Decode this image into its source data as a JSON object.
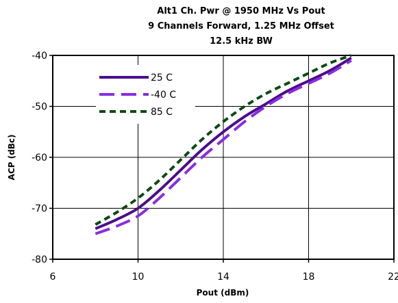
{
  "chart_data": {
    "type": "line",
    "title": [
      "Alt1 Ch. Pwr @ 1950 MHz Vs Pout",
      "9 Channels Forward, 1.25 MHz Offset",
      "12.5 kHz BW"
    ],
    "xlabel": "Pout (dBm)",
    "ylabel": "ACP (dBc)",
    "xlim": [
      6,
      22
    ],
    "ylim": [
      -80,
      -40
    ],
    "xticks": [
      6,
      10,
      14,
      18,
      22
    ],
    "yticks": [
      -80,
      -70,
      -60,
      -50,
      -40
    ],
    "grid": true,
    "legend_position": "top-left",
    "series": [
      {
        "name": "25 C",
        "color": "#4b0d8c",
        "dash": "solid",
        "x": [
          8,
          9,
          10,
          11,
          12,
          13,
          14,
          15,
          16,
          17,
          18,
          19,
          20
        ],
        "y": [
          -74,
          -72.2,
          -70,
          -66.5,
          -62.5,
          -58.5,
          -55,
          -52,
          -49.5,
          -47,
          -45,
          -43,
          -40.5
        ]
      },
      {
        "name": "-40 C",
        "color": "#8a2be2",
        "dash": "long",
        "x": [
          8,
          9,
          10,
          11,
          12,
          13,
          14,
          15,
          16,
          17,
          18,
          19,
          20
        ],
        "y": [
          -75,
          -73.5,
          -71.5,
          -68,
          -64,
          -60,
          -56.5,
          -53,
          -50,
          -47.5,
          -45.5,
          -43.5,
          -41
        ]
      },
      {
        "name": "85 C",
        "color": "#0b4a14",
        "dash": "short",
        "x": [
          8,
          9,
          10,
          11,
          12,
          13,
          14,
          15,
          16,
          17,
          18,
          19,
          20
        ],
        "y": [
          -73.2,
          -70.8,
          -68,
          -64.5,
          -60.5,
          -56.5,
          -53,
          -50,
          -47.5,
          -45.5,
          -43.5,
          -41.5,
          -40
        ]
      }
    ]
  }
}
